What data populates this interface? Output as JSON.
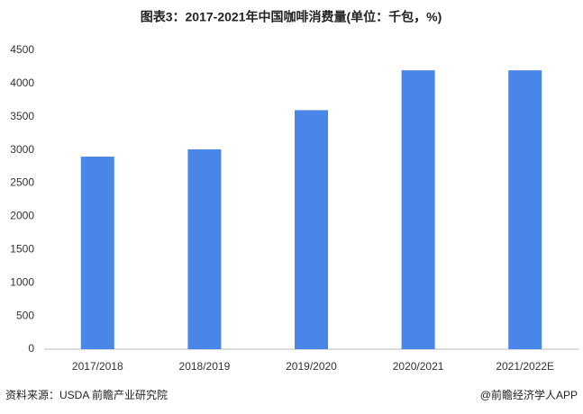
{
  "chart_data": {
    "type": "bar",
    "title": "图表3：2017-2021年中国咖啡消费量(单位：千包，%)",
    "categories": [
      "2017/2018",
      "2018/2019",
      "2019/2020",
      "2020/2021",
      "2021/2022E"
    ],
    "values": [
      2900,
      3010,
      3600,
      4200,
      4200
    ],
    "color": "#4a86e8",
    "ylim": [
      0,
      4500
    ],
    "yticks": [
      0,
      500,
      1000,
      1500,
      2000,
      2500,
      3000,
      3500,
      4000,
      4500
    ],
    "grid": false,
    "source": "资料来源：USDA 前瞻产业研究院",
    "credit": "@前瞻经济学人APP"
  }
}
